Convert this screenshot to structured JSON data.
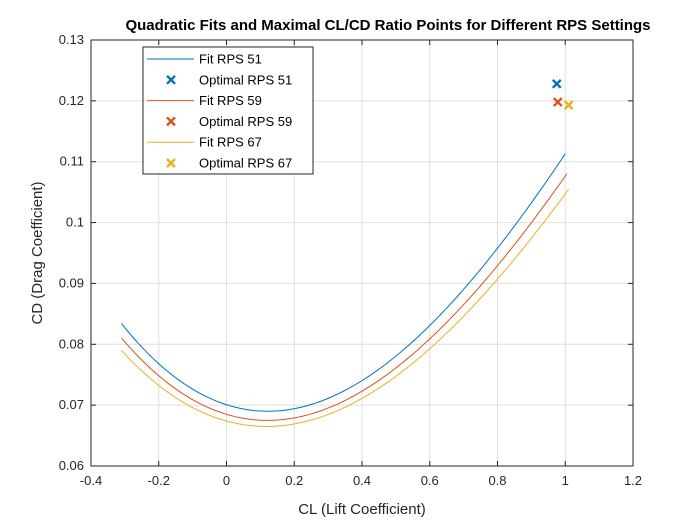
{
  "chart_data": {
    "type": "line",
    "title": "Quadratic Fits and Maximal CL/CD Ratio Points for Different RPS Settings",
    "xlabel": "CL (Lift Coefficient)",
    "ylabel": "CD (Drag Coefficient)",
    "xlim": [
      -0.4,
      1.2
    ],
    "ylim": [
      0.06,
      0.13
    ],
    "xticks": [
      -0.4,
      -0.2,
      0,
      0.2,
      0.4,
      0.6,
      0.8,
      1,
      1.2
    ],
    "yticks": [
      0.06,
      0.07,
      0.08,
      0.09,
      0.1,
      0.11,
      0.12,
      0.13
    ],
    "xtick_labels": [
      "-0.4",
      "-0.2",
      "0",
      "0.2",
      "0.4",
      "0.6",
      "0.8",
      "1",
      "1.2"
    ],
    "ytick_labels": [
      "0.06",
      "0.07",
      "0.08",
      "0.09",
      "0.1",
      "0.11",
      "0.12",
      "0.13"
    ],
    "grid": true,
    "legend_position": "top-left",
    "series": [
      {
        "name": "Fit RPS 51",
        "kind": "line",
        "color": "#0072bd",
        "x_range": [
          -0.31,
          1.0
        ],
        "coefficients": {
          "a": 0.0698,
          "b": -0.017,
          "c": 0.069
        },
        "vertex_x": 0.122
      },
      {
        "name": "Optimal RPS 51",
        "kind": "marker",
        "marker": "x",
        "color": "#0072bd",
        "x": 0.975,
        "y": 0.1228
      },
      {
        "name": "Fit RPS 59",
        "kind": "line",
        "color": "#d95319",
        "x_range": [
          -0.31,
          1.005
        ],
        "coefficients": {
          "a": 0.066,
          "b": -0.016,
          "c": 0.0675
        },
        "vertex_x": 0.121
      },
      {
        "name": "Optimal RPS 59",
        "kind": "marker",
        "marker": "x",
        "color": "#d95319",
        "x": 0.978,
        "y": 0.1198
      },
      {
        "name": "Fit RPS 67",
        "kind": "line",
        "color": "#edb120",
        "x_range": [
          -0.31,
          1.01
        ],
        "coefficients": {
          "a": 0.062,
          "b": -0.0146,
          "c": 0.0665
        },
        "vertex_x": 0.118
      },
      {
        "name": "Optimal RPS 67",
        "kind": "marker",
        "marker": "x",
        "color": "#edb120",
        "x": 1.01,
        "y": 0.1193
      }
    ]
  }
}
